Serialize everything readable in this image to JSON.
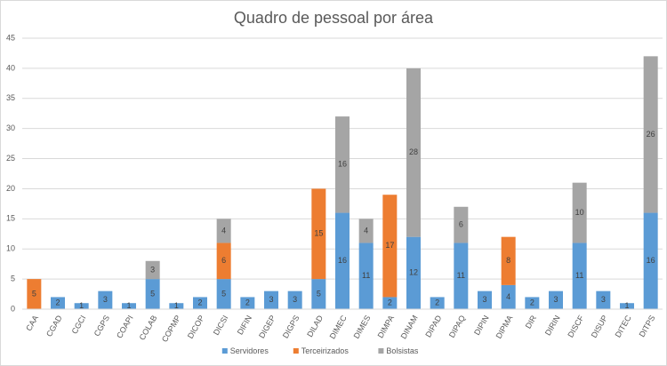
{
  "chart_data": {
    "type": "bar",
    "stacked": true,
    "title": "Quadro de pessoal por área",
    "categories": [
      "CAA",
      "CGAD",
      "CGCI",
      "CGPS",
      "COAPI",
      "COLAB",
      "COPMP",
      "DICOP",
      "DICSI",
      "DIFIN",
      "DIGEP",
      "DIGPS",
      "DILAD",
      "DIMEC",
      "DIMES",
      "DIMPA",
      "DINAM",
      "DIPAD",
      "DIPAQ",
      "DIPIN",
      "DIPMA",
      "DIR",
      "DIRIN",
      "DISCF",
      "DISUP",
      "DITEC",
      "DITPS"
    ],
    "series": [
      {
        "name": "Servidores",
        "color": "#5b9bd5",
        "values": [
          null,
          2,
          1,
          3,
          1,
          5,
          1,
          2,
          5,
          2,
          3,
          3,
          5,
          16,
          11,
          2,
          12,
          2,
          11,
          3,
          4,
          2,
          3,
          11,
          3,
          1,
          16
        ]
      },
      {
        "name": "Terceirizados",
        "color": "#ed7d31",
        "values": [
          5,
          null,
          null,
          null,
          null,
          null,
          null,
          null,
          6,
          null,
          null,
          null,
          15,
          null,
          null,
          17,
          null,
          null,
          null,
          null,
          8,
          null,
          null,
          null,
          null,
          null,
          null
        ]
      },
      {
        "name": "Bolsistas",
        "color": "#a5a5a5",
        "values": [
          null,
          null,
          null,
          null,
          null,
          3,
          null,
          null,
          4,
          null,
          null,
          null,
          null,
          16,
          4,
          null,
          28,
          null,
          6,
          null,
          null,
          null,
          null,
          10,
          null,
          null,
          26
        ]
      }
    ],
    "ylim": [
      0,
      45
    ],
    "yticks": [
      0,
      5,
      10,
      15,
      20,
      25,
      30,
      35,
      40,
      45
    ],
    "grid": true,
    "legend": "bottom"
  }
}
